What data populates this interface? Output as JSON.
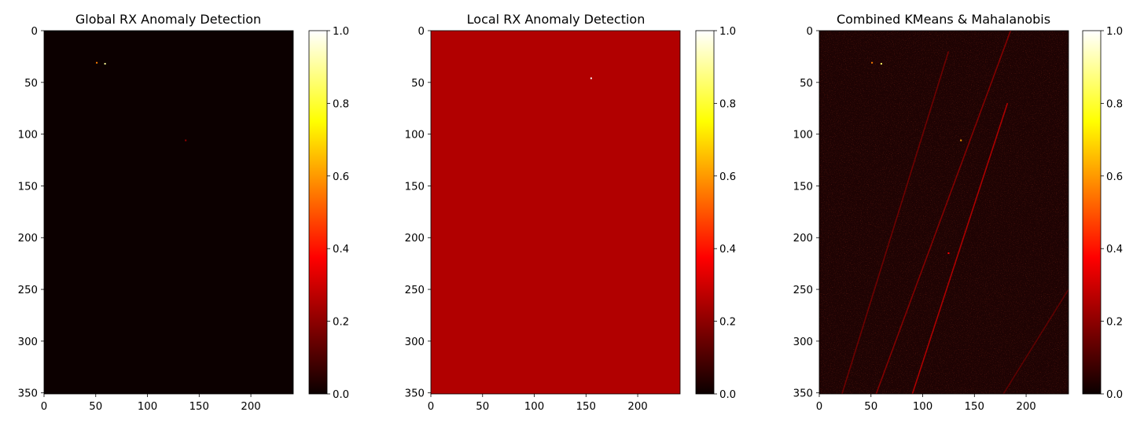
{
  "chart_data": [
    {
      "type": "heatmap",
      "title": "Global RX Anomaly Detection",
      "xlabel": "",
      "ylabel": "",
      "xlim": [
        0,
        241
      ],
      "ylim": [
        351,
        0
      ],
      "x_ticks": [
        0,
        50,
        100,
        150,
        200
      ],
      "y_ticks": [
        0,
        50,
        100,
        150,
        200,
        250,
        300,
        350
      ],
      "colormap": "hot",
      "background_color": "#0c0000",
      "colorbar": {
        "range": [
          0,
          1
        ],
        "ticks": [
          "0.0",
          "0.2",
          "0.4",
          "0.6",
          "0.8",
          "1.0"
        ]
      },
      "highlights": [
        {
          "x": 51,
          "y": 31,
          "value": 0.55
        },
        {
          "x": 59,
          "y": 32,
          "value": 0.9
        },
        {
          "x": 137,
          "y": 106,
          "value": 0.2
        }
      ]
    },
    {
      "type": "heatmap",
      "title": "Local RX Anomaly Detection",
      "xlabel": "",
      "ylabel": "",
      "xlim": [
        0,
        241
      ],
      "ylim": [
        351,
        0
      ],
      "x_ticks": [
        0,
        50,
        100,
        150,
        200
      ],
      "y_ticks": [
        0,
        50,
        100,
        150,
        200,
        250,
        300,
        350
      ],
      "colormap": "hot",
      "background_color": "#b10000",
      "colorbar": {
        "range": [
          0,
          1
        ],
        "ticks": [
          "0.0",
          "0.2",
          "0.4",
          "0.6",
          "0.8",
          "1.0"
        ]
      },
      "highlights": [
        {
          "x": 155,
          "y": 46,
          "value": 1.0
        }
      ]
    },
    {
      "type": "heatmap",
      "title": "Combined KMeans & Mahalanobis",
      "xlabel": "",
      "ylabel": "",
      "xlim": [
        0,
        241
      ],
      "ylim": [
        351,
        0
      ],
      "x_ticks": [
        0,
        50,
        100,
        150,
        200
      ],
      "y_ticks": [
        0,
        50,
        100,
        150,
        200,
        250,
        300,
        350
      ],
      "colormap": "hot",
      "background_color": "#1e0303",
      "colorbar": {
        "range": [
          0,
          1
        ],
        "ticks": [
          "0.0",
          "0.2",
          "0.4",
          "0.6",
          "0.8",
          "1.0"
        ]
      },
      "streaks": [
        {
          "from": [
            22,
            351
          ],
          "to": [
            125,
            20
          ],
          "value": 0.18
        },
        {
          "from": [
            55,
            351
          ],
          "to": [
            185,
            0
          ],
          "value": 0.22
        },
        {
          "from": [
            90,
            351
          ],
          "to": [
            182,
            70
          ],
          "value": 0.3
        },
        {
          "from": [
            178,
            351
          ],
          "to": [
            241,
            250
          ],
          "value": 0.15
        }
      ],
      "highlights": [
        {
          "x": 51,
          "y": 31,
          "value": 0.55
        },
        {
          "x": 60,
          "y": 32,
          "value": 0.85
        },
        {
          "x": 137,
          "y": 106,
          "value": 0.6
        },
        {
          "x": 125,
          "y": 215,
          "value": 0.35
        }
      ]
    }
  ]
}
